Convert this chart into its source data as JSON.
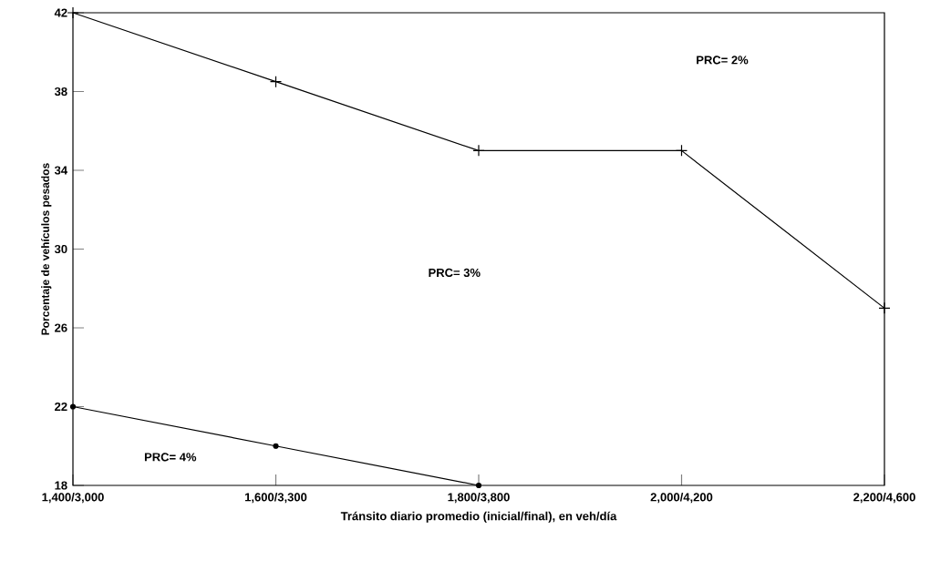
{
  "chart_data": {
    "type": "line",
    "xlabel": "Tránsito diario promedio (inicial/final), en veh/día",
    "ylabel": "Porcentaje de vehículos pesados",
    "categories": [
      "1,400/3,000",
      "1,600/3,300",
      "1,800/3,800",
      "2,000/4,200",
      "2,200/4,600"
    ],
    "series": [
      {
        "color": "#000000",
        "marker": "cross",
        "values": [
          42,
          38.5,
          35,
          35,
          27
        ]
      },
      {
        "color": "#000000",
        "marker": "circle",
        "values": [
          22,
          20,
          18,
          null,
          null
        ]
      }
    ],
    "ylim": [
      18,
      42
    ],
    "yticks": [
      18,
      22,
      26,
      30,
      34,
      38,
      42
    ],
    "grid": false,
    "line_style": "solid",
    "annotations": [
      "PRC= 2%",
      "PRC= 3%",
      "PRC= 4%"
    ]
  }
}
